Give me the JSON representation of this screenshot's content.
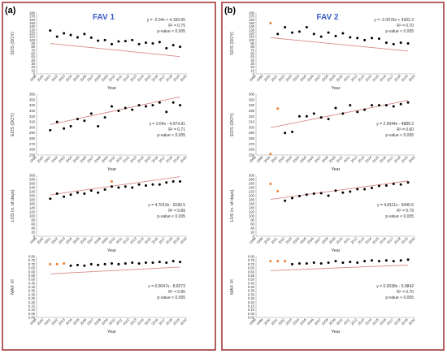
{
  "colors": {
    "point": "#000000",
    "outlier": "#F07D2E",
    "trend": "#D98A8A",
    "panel_border": "#9A2A2A",
    "title": "#3B5BC4",
    "frame": "#555555",
    "grid_axis": "#999999"
  },
  "panels": [
    {
      "label": "(a)",
      "title": "FAV 1",
      "chart_data": [
        {
          "type": "scatter",
          "ylabel": "SOS (DOY)",
          "xlabel": "Year",
          "ylim": [
            0,
            180
          ],
          "yticks": [
            "0",
            "10",
            "20",
            "30",
            "40",
            "50",
            "60",
            "70",
            "80",
            "90",
            "100",
            "110",
            "120",
            "130",
            "140",
            "150",
            "160",
            "170",
            "180"
          ],
          "xticks": [
            "1998",
            "2000",
            "2001",
            "2002",
            "2003",
            "2004",
            "2005",
            "2006",
            "2007",
            "2008",
            "2009",
            "2010",
            "2011",
            "2012",
            "2013",
            "2014",
            "2015",
            "2016",
            "2017",
            "2018",
            "2019",
            "2020"
          ],
          "x": [
            2000,
            2001,
            2002,
            2003,
            2004,
            2005,
            2006,
            2007,
            2008,
            2009,
            2010,
            2011,
            2012,
            2013,
            2014,
            2015,
            2016,
            2017,
            2018,
            2019
          ],
          "y": [
            128,
            110,
            120,
            115,
            108,
            118,
            107,
            98,
            100,
            88,
            96,
            97,
            100,
            88,
            92,
            90,
            94,
            76,
            85,
            80
          ],
          "outliers": [],
          "trend": {
            "slope": -2.04,
            "intercept": 4169.95
          },
          "equation": [
            "y = -2.04x + 4,169.95",
            "R² = 0.75",
            "p-value < 0.005"
          ]
        },
        {
          "type": "scatter",
          "ylabel": "EOS (DOY)",
          "xlabel": "Year",
          "ylim": [
            250,
            360
          ],
          "yticks": [
            "250",
            "260",
            "270",
            "280",
            "290",
            "300",
            "310",
            "320",
            "330",
            "340",
            "350",
            "360"
          ],
          "xticks": [
            "1998",
            "2000",
            "2001",
            "2002",
            "2003",
            "2004",
            "2005",
            "2006",
            "2007",
            "2008",
            "2009",
            "2010",
            "2011",
            "2012",
            "2013",
            "2014",
            "2015",
            "2016",
            "2017",
            "2018",
            "2019",
            "2020"
          ],
          "x": [
            2000,
            2001,
            2002,
            2003,
            2004,
            2005,
            2006,
            2007,
            2008,
            2009,
            2010,
            2011,
            2012,
            2013,
            2014,
            2015,
            2016,
            2017,
            2018,
            2019
          ],
          "y": [
            295,
            310,
            298,
            302,
            315,
            312,
            325,
            302,
            318,
            338,
            330,
            335,
            332,
            340,
            338,
            340,
            345,
            328,
            345,
            340
          ],
          "outliers": [],
          "trend": {
            "slope": 2.64,
            "intercept": -4974.91
          },
          "equation": [
            "y = 2.64x - 4,974.91",
            "R² = 0.71",
            "p-value < 0.005"
          ]
        },
        {
          "type": "scatter",
          "ylabel": "LOS (n. of days)",
          "xlabel": "Year",
          "ylim": [
            0,
            300
          ],
          "yticks": [
            "0",
            "20",
            "40",
            "60",
            "80",
            "100",
            "120",
            "140",
            "160",
            "180",
            "200",
            "220",
            "240",
            "260",
            "280",
            "300"
          ],
          "xticks": [
            "1998",
            "2000",
            "2001",
            "2002",
            "2003",
            "2004",
            "2005",
            "2006",
            "2007",
            "2008",
            "2009",
            "2010",
            "2011",
            "2012",
            "2013",
            "2014",
            "2015",
            "2016",
            "2017",
            "2018",
            "2019",
            "2020"
          ],
          "x": [
            2000,
            2001,
            2002,
            2003,
            2004,
            2005,
            2006,
            2007,
            2008,
            2009,
            2010,
            2011,
            2012,
            2013,
            2014,
            2015,
            2016,
            2017,
            2018,
            2019
          ],
          "y": [
            185,
            210,
            195,
            205,
            215,
            210,
            225,
            215,
            230,
            245,
            240,
            245,
            240,
            255,
            250,
            255,
            255,
            265,
            270,
            270
          ],
          "outliers": [
            {
              "x": 2009,
              "y": 270
            }
          ],
          "trend": {
            "slope": 4.7019,
            "intercept": -9199.5
          },
          "equation": [
            "y = 4.7019x - 9199.5",
            "R² = 0.89",
            "p-value < 0.005"
          ]
        },
        {
          "type": "scatter",
          "ylabel": "MAX VI",
          "xlabel": "Year",
          "ylim": [
            0,
            0.8
          ],
          "yticks": [
            "0.00",
            "0.05",
            "0.10",
            "0.15",
            "0.20",
            "0.25",
            "0.30",
            "0.35",
            "0.40",
            "0.45",
            "0.50",
            "0.55",
            "0.60",
            "0.65",
            "0.70",
            "0.75",
            "0.80"
          ],
          "xticks": [
            "1998",
            "2000",
            "2001",
            "2002",
            "2003",
            "2004",
            "2005",
            "2006",
            "2007",
            "2008",
            "2009",
            "2010",
            "2011",
            "2012",
            "2013",
            "2014",
            "2015",
            "2016",
            "2017",
            "2018",
            "2019",
            "2020"
          ],
          "x": [
            2003,
            2004,
            2005,
            2006,
            2007,
            2008,
            2009,
            2010,
            2011,
            2012,
            2013,
            2014,
            2015,
            2016,
            2017,
            2018,
            2019
          ],
          "y": [
            0.68,
            0.69,
            0.68,
            0.7,
            0.69,
            0.7,
            0.71,
            0.7,
            0.71,
            0.72,
            0.71,
            0.72,
            0.72,
            0.73,
            0.72,
            0.74,
            0.73
          ],
          "outliers": [
            {
              "x": 2000,
              "y": 0.7
            },
            {
              "x": 2001,
              "y": 0.7
            },
            {
              "x": 2002,
              "y": 0.71
            }
          ],
          "trend": {
            "slope": 0.0047,
            "intercept": -8.8273
          },
          "equation": [
            "y = 0.0047x - 8.8273",
            "R² = 0.85",
            "p-value < 0.005"
          ]
        }
      ]
    },
    {
      "label": "(b)",
      "title": "FAV 2",
      "chart_data": [
        {
          "type": "scatter",
          "ylabel": "SOS (DOY)",
          "xlabel": "Year",
          "ylim": [
            0,
            180
          ],
          "yticks": [
            "0",
            "10",
            "20",
            "30",
            "40",
            "50",
            "60",
            "70",
            "80",
            "90",
            "100",
            "110",
            "120",
            "130",
            "140",
            "150",
            "160",
            "170",
            "180"
          ],
          "xticks": [
            "1998",
            "1999",
            "2000",
            "2001",
            "2002",
            "2003",
            "2004",
            "2005",
            "2006",
            "2007",
            "2008",
            "2009",
            "2010",
            "2011",
            "2012",
            "2013",
            "2014",
            "2015",
            "2016",
            "2017",
            "2018",
            "2019",
            "2020"
          ],
          "x": [
            2001,
            2002,
            2003,
            2004,
            2005,
            2006,
            2007,
            2008,
            2009,
            2010,
            2011,
            2012,
            2013,
            2014,
            2015,
            2016,
            2017,
            2018,
            2019
          ],
          "y": [
            118,
            138,
            122,
            125,
            138,
            118,
            110,
            122,
            112,
            120,
            108,
            106,
            100,
            106,
            104,
            92,
            88,
            92,
            90
          ],
          "outliers": [
            {
              "x": 2000,
              "y": 150
            }
          ],
          "trend": {
            "slope": -2.0976,
            "intercept": 4302.3
          },
          "equation": [
            "y = -2.0976x + 4302.3",
            "R² = 0.70",
            "p-value < 0.005"
          ]
        },
        {
          "type": "scatter",
          "ylabel": "EOS (DOY)",
          "xlabel": "Year",
          "ylim": [
            250,
            360
          ],
          "yticks": [
            "250",
            "260",
            "270",
            "280",
            "290",
            "300",
            "310",
            "320",
            "330",
            "340",
            "350",
            "360"
          ],
          "xticks": [
            "1998",
            "1999",
            "2000",
            "2001",
            "2002",
            "2003",
            "2004",
            "2005",
            "2006",
            "2007",
            "2008",
            "2009",
            "2010",
            "2011",
            "2012",
            "2013",
            "2014",
            "2015",
            "2016",
            "2017",
            "2018",
            "2019",
            "2020"
          ],
          "x": [
            2002,
            2003,
            2004,
            2005,
            2006,
            2007,
            2008,
            2009,
            2010,
            2011,
            2012,
            2013,
            2014,
            2015,
            2016,
            2017,
            2018,
            2019
          ],
          "y": [
            290,
            292,
            320,
            320,
            325,
            318,
            315,
            335,
            325,
            340,
            328,
            332,
            340,
            340,
            340,
            338,
            342,
            345
          ],
          "outliers": [
            {
              "x": 2000,
              "y": 252
            },
            {
              "x": 2001,
              "y": 334
            }
          ],
          "trend": {
            "slope": 2.5944,
            "intercept": -4889.2
          },
          "equation": [
            "y = 2.5944x - 4889.2",
            "R² = 0.60",
            "p-value < 0.005"
          ]
        },
        {
          "type": "scatter",
          "ylabel": "LOS (n. of days)",
          "xlabel": "Year",
          "ylim": [
            0,
            300
          ],
          "yticks": [
            "0",
            "20",
            "40",
            "60",
            "80",
            "100",
            "120",
            "140",
            "160",
            "180",
            "200",
            "220",
            "240",
            "260",
            "280",
            "300"
          ],
          "xticks": [
            "1998",
            "1999",
            "2000",
            "2001",
            "2002",
            "2003",
            "2004",
            "2005",
            "2006",
            "2007",
            "2008",
            "2009",
            "2010",
            "2011",
            "2012",
            "2013",
            "2014",
            "2015",
            "2016",
            "2017",
            "2018",
            "2019",
            "2020"
          ],
          "x": [
            2002,
            2003,
            2004,
            2005,
            2006,
            2007,
            2008,
            2009,
            2010,
            2011,
            2012,
            2013,
            2014,
            2015,
            2016,
            2017,
            2018,
            2019
          ],
          "y": [
            175,
            188,
            198,
            205,
            210,
            212,
            200,
            225,
            215,
            220,
            232,
            232,
            238,
            248,
            250,
            258,
            255,
            265
          ],
          "outliers": [
            {
              "x": 2000,
              "y": 258
            },
            {
              "x": 2001,
              "y": 222
            }
          ],
          "trend": {
            "slope": 4.8111,
            "intercept": -9440.6
          },
          "equation": [
            "y = 4.8111x - 9440.6",
            "R² = 0.79",
            "p-value < 0.005"
          ]
        },
        {
          "type": "scatter",
          "ylabel": "MAX VI",
          "xlabel": "Year",
          "ylim": [
            0,
            0.8
          ],
          "yticks": [
            "0.00",
            "0.05",
            "0.10",
            "0.15",
            "0.20",
            "0.25",
            "0.30",
            "0.35",
            "0.40",
            "0.45",
            "0.50",
            "0.55",
            "0.60",
            "0.65",
            "0.70",
            "0.75",
            "0.80"
          ],
          "xticks": [
            "1998",
            "1999",
            "2000",
            "2001",
            "2002",
            "2003",
            "2004",
            "2005",
            "2006",
            "2007",
            "2008",
            "2009",
            "2010",
            "2011",
            "2012",
            "2013",
            "2014",
            "2015",
            "2016",
            "2017",
            "2018",
            "2019",
            "2020"
          ],
          "x": [
            2003,
            2004,
            2005,
            2006,
            2007,
            2008,
            2009,
            2010,
            2011,
            2012,
            2013,
            2014,
            2015,
            2016,
            2017,
            2018,
            2019
          ],
          "y": [
            0.7,
            0.71,
            0.71,
            0.72,
            0.71,
            0.72,
            0.74,
            0.72,
            0.73,
            0.72,
            0.74,
            0.75,
            0.74,
            0.75,
            0.74,
            0.75,
            0.76
          ],
          "outliers": [
            {
              "x": 2000,
              "y": 0.74
            },
            {
              "x": 2001,
              "y": 0.74
            },
            {
              "x": 2002,
              "y": 0.74
            }
          ],
          "trend": {
            "slope": 0.0038,
            "intercept": -6.9842
          },
          "equation": [
            "y = 0.0038x - 6.9842",
            "R² = 0.70",
            "p-value < 0.005"
          ]
        }
      ]
    }
  ]
}
